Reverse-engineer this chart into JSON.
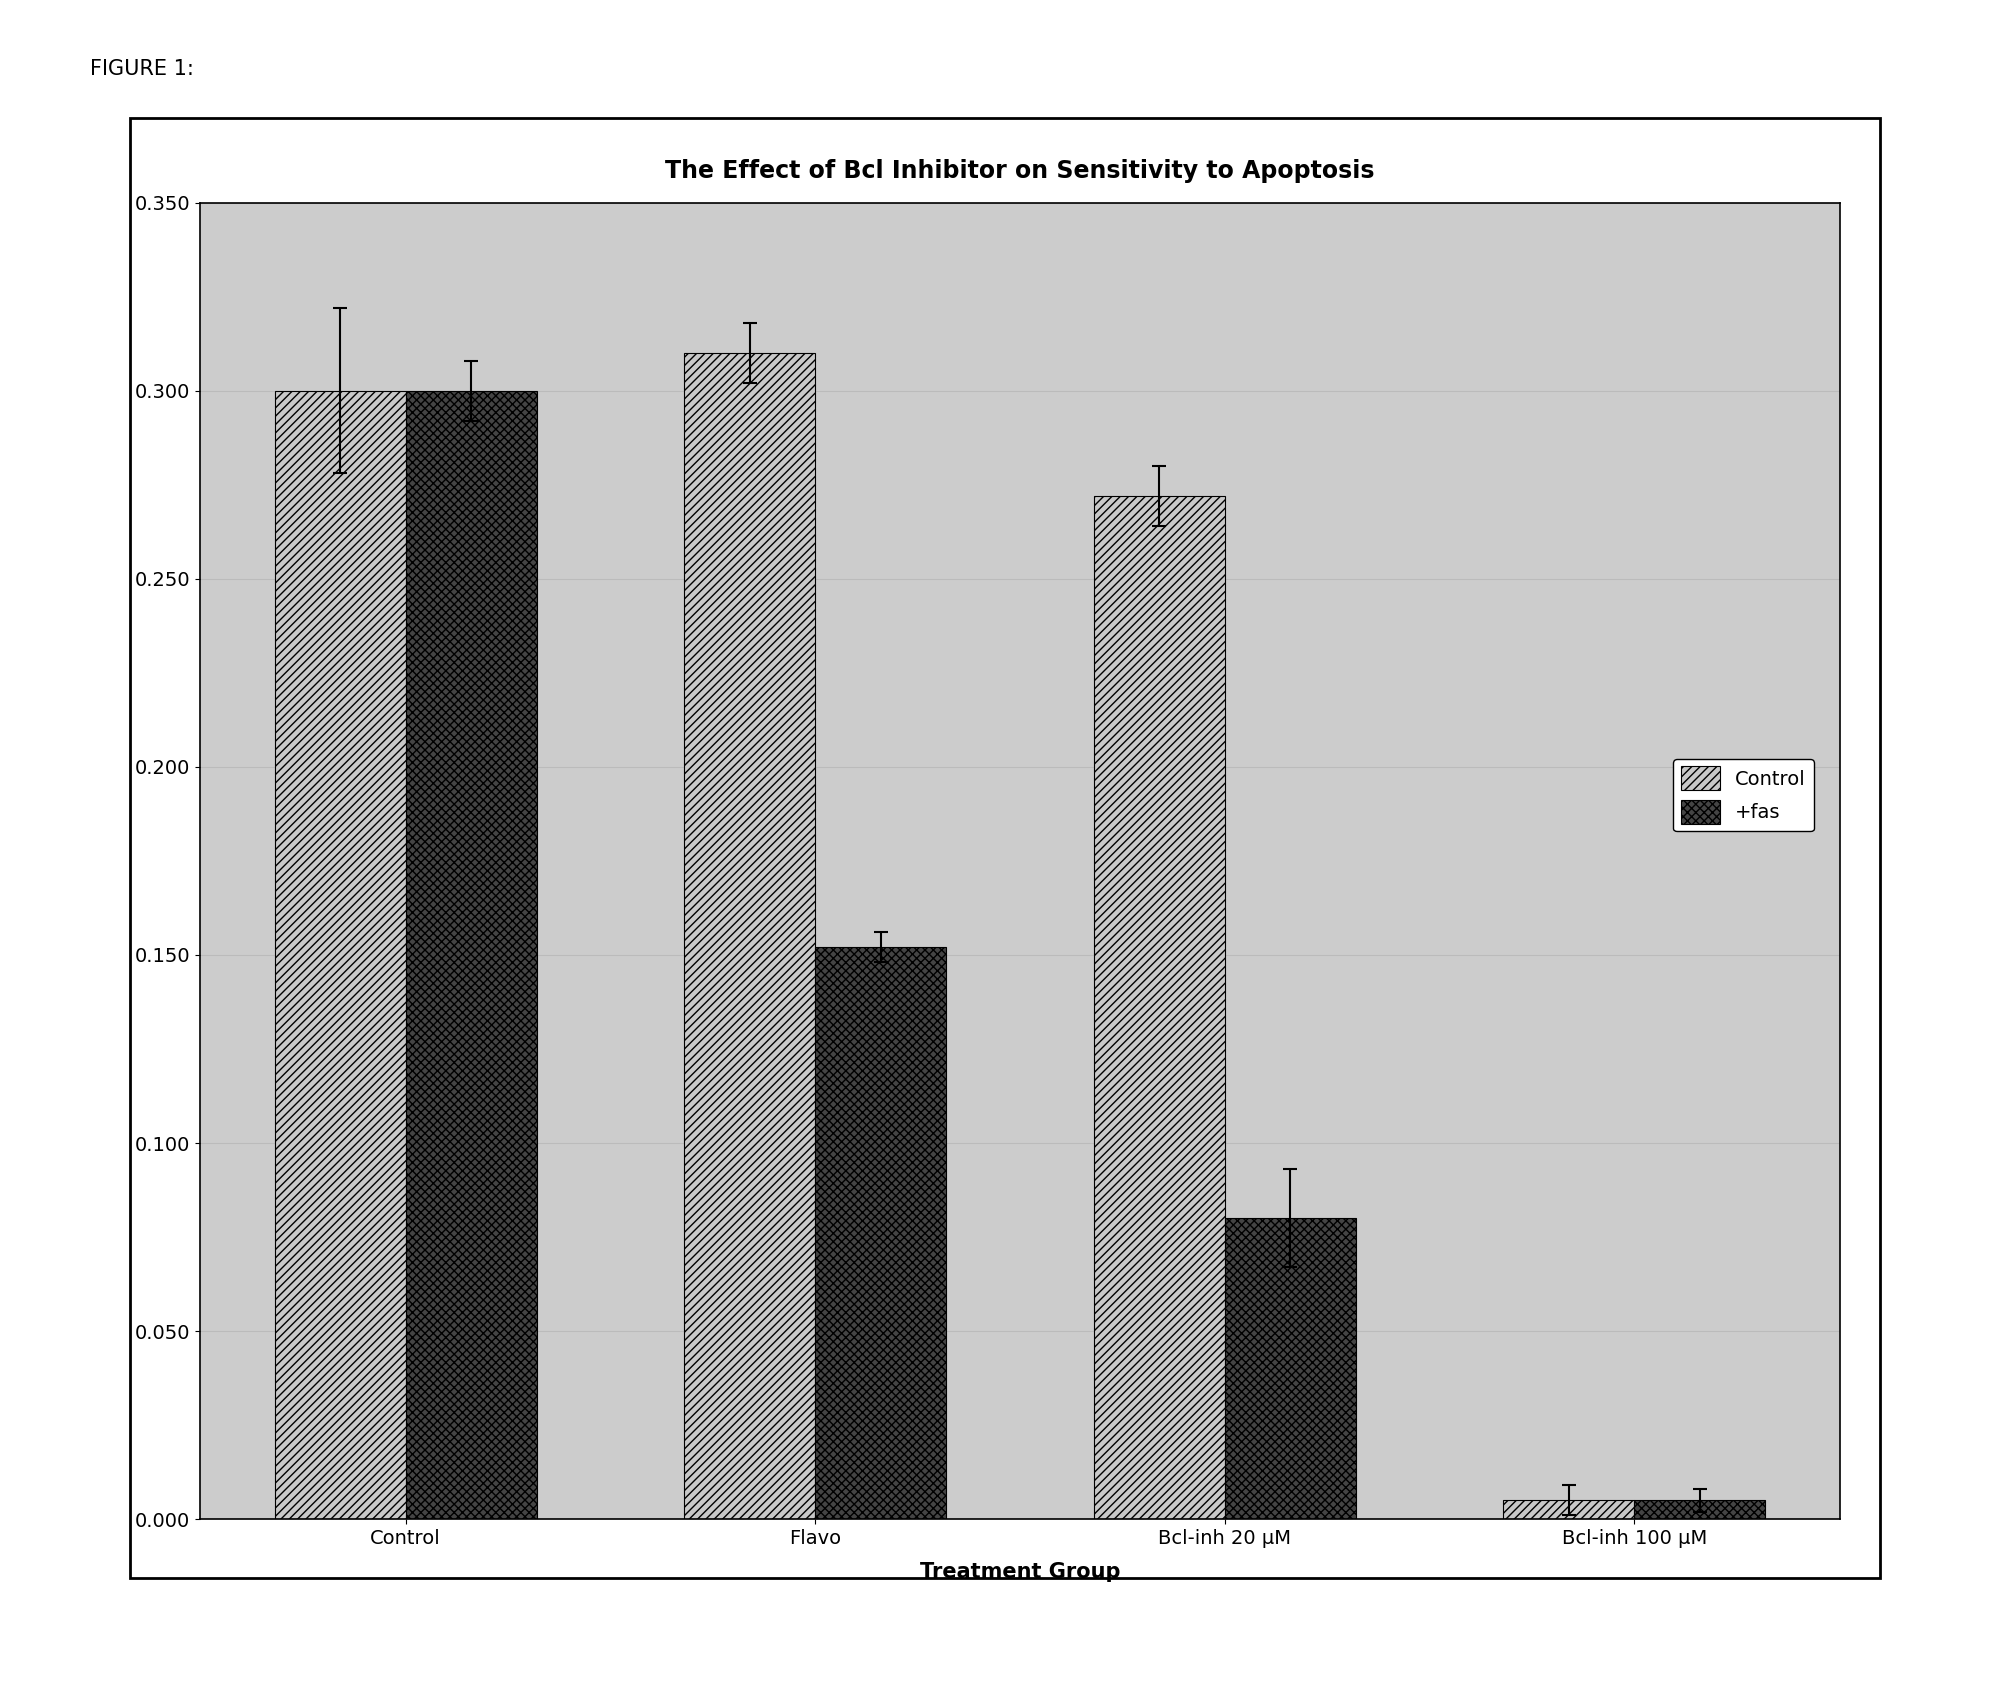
{
  "title": "The Effect of Bcl Inhibitor on Sensitivity to Apoptosis",
  "xlabel": "Treatment Group",
  "figure_label": "FIGURE 1:",
  "categories": [
    "Control",
    "Flavo",
    "Bcl-inh 20 μM",
    "Bcl-inh 100 μM"
  ],
  "control_values": [
    0.3,
    0.31,
    0.272,
    0.005
  ],
  "fas_values": [
    0.3,
    0.152,
    0.08,
    0.005
  ],
  "control_errors": [
    0.022,
    0.008,
    0.008,
    0.004
  ],
  "fas_errors": [
    0.008,
    0.004,
    0.013,
    0.003
  ],
  "ylim": [
    0.0,
    0.35
  ],
  "yticks": [
    0.0,
    0.05,
    0.1,
    0.15,
    0.2,
    0.25,
    0.3,
    0.35
  ],
  "bar_width": 0.32,
  "background_color": "#ffffff",
  "plot_bg_color": "#d8d8d8",
  "legend_labels": [
    "Control",
    "+fas"
  ],
  "grid_color": "#bbbbbb",
  "title_fontsize": 17,
  "axis_fontsize": 15,
  "tick_fontsize": 14,
  "legend_fontsize": 14
}
